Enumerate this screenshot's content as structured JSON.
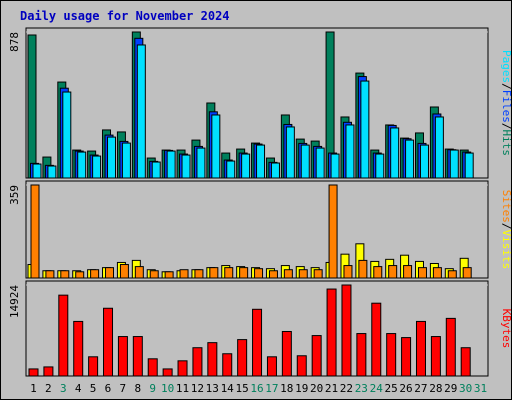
{
  "chart_data": [
    {
      "type": "bar",
      "title": "Daily usage for November 2024",
      "legend_separator": "/",
      "ylim": [
        0,
        878
      ],
      "yticks": [
        878
      ],
      "series": [
        {
          "name": "Hits",
          "color": "#00805c",
          "values": [
            860,
            126,
            577,
            168,
            162,
            289,
            277,
            878,
            120,
            168,
            168,
            228,
            451,
            150,
            174,
            210,
            120,
            379,
            234,
            222,
            878,
            367,
            631,
            168,
            319,
            240,
            271,
            427,
            174,
            168,
            null
          ]
        },
        {
          "name": "Files",
          "color": "#0040ff",
          "values": [
            88,
            76,
            540,
            162,
            138,
            258,
            220,
            840,
            100,
            166,
            144,
            190,
            398,
            108,
            150,
            204,
            94,
            322,
            208,
            190,
            150,
            335,
            610,
            150,
            316,
            236,
            208,
            385,
            170,
            156,
            null
          ]
        },
        {
          "name": "Pages",
          "color": "#00e0ff",
          "values": [
            84,
            72,
            517,
            156,
            132,
            246,
            210,
            800,
            96,
            162,
            138,
            180,
            379,
            102,
            144,
            198,
            90,
            307,
            198,
            180,
            144,
            319,
            583,
            144,
            301,
            228,
            198,
            367,
            168,
            150,
            null
          ]
        }
      ]
    },
    {
      "type": "bar",
      "legend_separator": "/",
      "ylim": [
        0,
        359
      ],
      "yticks": [
        359
      ],
      "series": [
        {
          "name": "Visits",
          "color": "#ffff00",
          "values": [
            52,
            28,
            28,
            28,
            32,
            40,
            60,
            68,
            32,
            24,
            28,
            32,
            40,
            48,
            44,
            40,
            36,
            48,
            44,
            40,
            60,
            92,
            132,
            64,
            72,
            88,
            64,
            56,
            36,
            76,
            null
          ]
        },
        {
          "name": "Sites",
          "color": "#ff8000",
          "values": [
            359,
            28,
            28,
            24,
            32,
            40,
            52,
            44,
            28,
            24,
            32,
            32,
            40,
            40,
            40,
            36,
            28,
            32,
            32,
            32,
            359,
            48,
            68,
            44,
            48,
            48,
            40,
            40,
            28,
            40,
            null
          ]
        }
      ]
    },
    {
      "type": "bar",
      "ylim": [
        0,
        14924
      ],
      "yticks": [
        14924
      ],
      "categories": [
        "1",
        "2",
        "3",
        "4",
        "5",
        "6",
        "7",
        "8",
        "9",
        "10",
        "11",
        "12",
        "13",
        "14",
        "15",
        "16",
        "17",
        "18",
        "19",
        "20",
        "21",
        "22",
        "23",
        "24",
        "25",
        "26",
        "27",
        "28",
        "29",
        "30",
        "31"
      ],
      "category_colors": [
        "#000000",
        "#000000",
        "#00805c",
        "#000000",
        "#000000",
        "#000000",
        "#000000",
        "#000000",
        "#00805c",
        "#00805c",
        "#000000",
        "#000000",
        "#000000",
        "#000000",
        "#000000",
        "#00805c",
        "#00805c",
        "#000000",
        "#000000",
        "#000000",
        "#000000",
        "#000000",
        "#00805c",
        "#00805c",
        "#000000",
        "#000000",
        "#000000",
        "#000000",
        "#000000",
        "#00805c",
        "#00805c"
      ],
      "series": [
        {
          "name": "KBytes",
          "color": "#ff0000",
          "values": [
            1160,
            1490,
            13260,
            8950,
            3150,
            11110,
            6470,
            6470,
            2820,
            1160,
            2490,
            4640,
            5470,
            3650,
            5970,
            10940,
            3150,
            7300,
            3320,
            6630,
            14260,
            14924,
            6960,
            11940,
            6960,
            6300,
            8950,
            6470,
            9450,
            4640,
            null
          ]
        }
      ]
    }
  ]
}
